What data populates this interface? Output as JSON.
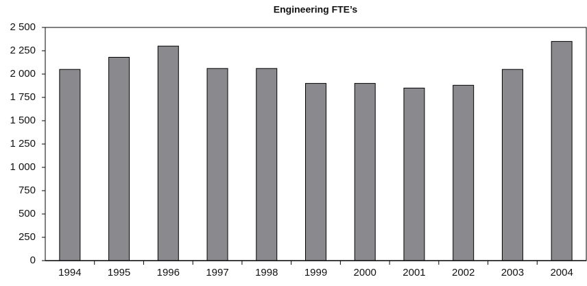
{
  "chart_data": {
    "type": "bar",
    "title": "Engineering FTE’s",
    "categories": [
      "1994",
      "1995",
      "1996",
      "1997",
      "1998",
      "1999",
      "2000",
      "2001",
      "2002",
      "2003",
      "2004"
    ],
    "values": [
      2050,
      2180,
      2300,
      2060,
      2060,
      1900,
      1900,
      1850,
      1880,
      2050,
      2350
    ],
    "color": "#8a8a8e",
    "ylim": [
      0,
      2500
    ],
    "yticks": [
      0,
      250,
      500,
      750,
      {
        "value": 1000,
        "label": "1 000"
      },
      {
        "value": 1250,
        "label": "1 250"
      },
      {
        "value": 1500,
        "label": "1 500"
      },
      {
        "value": 1750,
        "label": "1 750"
      },
      {
        "value": 2000,
        "label": "2 000"
      },
      {
        "value": 2250,
        "label": "2 250"
      },
      {
        "value": 2500,
        "label": "2 500"
      }
    ],
    "grid": false
  }
}
